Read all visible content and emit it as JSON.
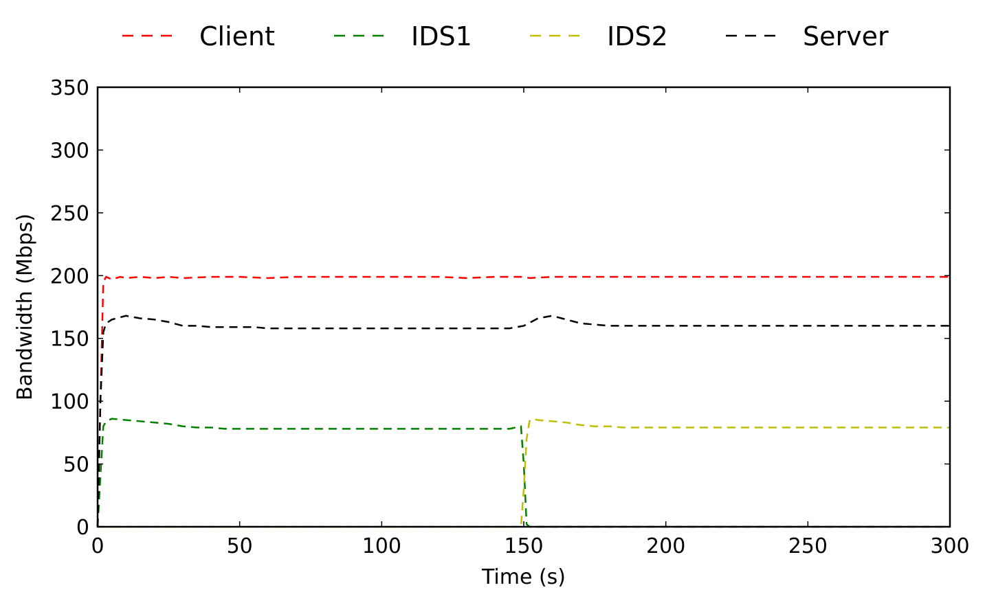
{
  "chart_data": {
    "type": "line",
    "xlabel": "Time (s)",
    "ylabel": "Bandwidth (Mbps)",
    "xlim": [
      0,
      300
    ],
    "ylim": [
      0,
      350
    ],
    "xticks": [
      0,
      50,
      100,
      150,
      200,
      250,
      300
    ],
    "yticks": [
      0,
      50,
      100,
      150,
      200,
      250,
      300,
      350
    ],
    "grid": false,
    "legend_position": "top",
    "line_style": "dashed",
    "series": [
      {
        "name": "Client",
        "color": "#ff0000",
        "x": [
          0,
          1,
          2,
          3,
          5,
          8,
          10,
          15,
          20,
          25,
          30,
          40,
          50,
          60,
          70,
          80,
          90,
          100,
          110,
          120,
          130,
          140,
          150,
          152,
          160,
          170,
          180,
          190,
          200,
          210,
          220,
          230,
          240,
          250,
          260,
          270,
          280,
          290,
          300
        ],
        "values": [
          0,
          100,
          195,
          199,
          197,
          199,
          198,
          199,
          198,
          199,
          198,
          199,
          199,
          198,
          199,
          199,
          199,
          199,
          199,
          199,
          198,
          199,
          199,
          198,
          199,
          199,
          199,
          199,
          199,
          199,
          199,
          199,
          199,
          199,
          199,
          199,
          199,
          199,
          199
        ]
      },
      {
        "name": "IDS1",
        "color": "#008000",
        "x": [
          0,
          1,
          2,
          3,
          5,
          10,
          15,
          20,
          25,
          30,
          35,
          40,
          45,
          50,
          55,
          60,
          65,
          70,
          75,
          80,
          85,
          90,
          95,
          100,
          105,
          110,
          115,
          120,
          125,
          130,
          135,
          140,
          145,
          149,
          150,
          151,
          152,
          160,
          200,
          250,
          300
        ],
        "values": [
          0,
          40,
          80,
          84,
          86,
          85,
          84,
          83,
          82,
          80,
          79,
          79,
          78,
          78,
          78,
          78,
          78,
          78,
          78,
          78,
          78,
          78,
          78,
          78,
          78,
          78,
          78,
          78,
          78,
          78,
          78,
          78,
          78,
          80,
          50,
          2,
          0,
          0,
          0,
          0,
          0
        ]
      },
      {
        "name": "IDS2",
        "color": "#bfbf00",
        "x": [
          0,
          100,
          149,
          150,
          151,
          152,
          153,
          155,
          160,
          165,
          170,
          175,
          180,
          185,
          190,
          195,
          200,
          205,
          210,
          215,
          220,
          225,
          230,
          235,
          240,
          245,
          250,
          255,
          260,
          265,
          270,
          275,
          280,
          285,
          290,
          295,
          300
        ],
        "values": [
          0,
          0,
          0,
          30,
          70,
          84,
          86,
          85,
          84,
          83,
          81,
          80,
          80,
          79,
          79,
          79,
          79,
          79,
          79,
          79,
          79,
          79,
          79,
          79,
          79,
          79,
          79,
          79,
          79,
          79,
          79,
          79,
          79,
          79,
          79,
          79,
          79
        ]
      },
      {
        "name": "Server",
        "color": "#000000",
        "x": [
          0,
          1,
          2,
          3,
          5,
          10,
          15,
          20,
          25,
          30,
          35,
          40,
          45,
          50,
          55,
          60,
          65,
          70,
          75,
          80,
          85,
          90,
          95,
          100,
          105,
          110,
          115,
          120,
          125,
          130,
          135,
          140,
          145,
          150,
          155,
          160,
          165,
          170,
          175,
          180,
          185,
          190,
          195,
          200,
          205,
          210,
          215,
          220,
          225,
          230,
          235,
          240,
          245,
          250,
          255,
          260,
          265,
          270,
          275,
          280,
          285,
          290,
          295,
          300
        ],
        "values": [
          0,
          100,
          155,
          162,
          165,
          168,
          166,
          165,
          163,
          160,
          160,
          159,
          159,
          159,
          159,
          158,
          158,
          158,
          158,
          158,
          158,
          158,
          158,
          158,
          158,
          158,
          158,
          158,
          158,
          158,
          158,
          158,
          158,
          160,
          166,
          168,
          165,
          162,
          161,
          160,
          160,
          160,
          160,
          160,
          160,
          160,
          160,
          160,
          160,
          160,
          160,
          160,
          160,
          160,
          160,
          160,
          160,
          160,
          160,
          160,
          160,
          160,
          160,
          160
        ]
      }
    ]
  }
}
